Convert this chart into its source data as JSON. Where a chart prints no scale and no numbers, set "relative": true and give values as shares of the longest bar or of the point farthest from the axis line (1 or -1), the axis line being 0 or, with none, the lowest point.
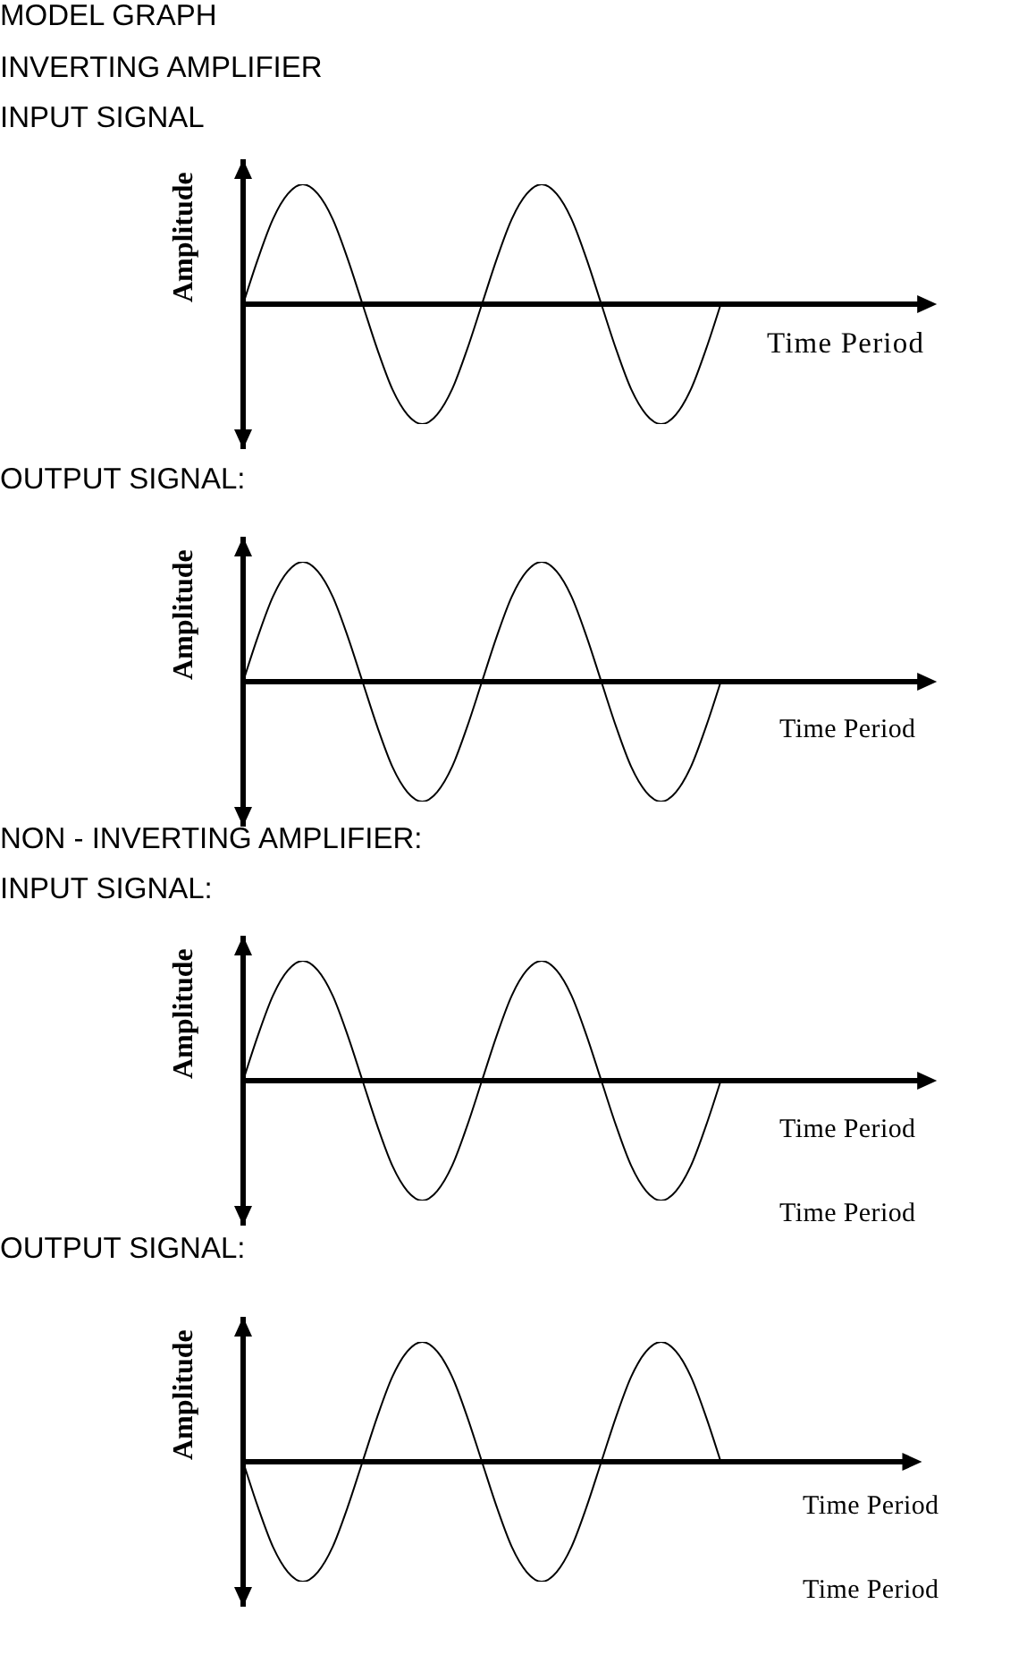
{
  "chart_data": [
    {
      "type": "line",
      "title": "MODEL GRAPH\nINVERTING AMPLIFIER",
      "subtitle": "INPUT SIGNAL",
      "xlabel": "Time Period",
      "ylabel": "Amplitude",
      "relative": true,
      "categories": [
        null,
        null,
        null,
        null,
        null,
        null,
        null,
        null,
        null,
        null,
        null,
        null,
        null,
        null,
        null,
        null,
        null,
        null,
        null,
        null,
        null,
        null,
        null,
        null,
        null,
        null,
        null,
        null,
        null,
        null,
        null,
        null,
        null,
        null,
        null,
        null,
        null,
        null,
        null,
        null,
        null,
        null,
        null,
        null,
        null,
        null,
        null
      ],
      "values": [
        0,
        0.38,
        0.71,
        0.92,
        1,
        0.92,
        0.71,
        0.38,
        0,
        -0.38,
        -0.71,
        -0.92,
        -1,
        -0.92,
        -0.71,
        -0.38,
        0,
        0.38,
        0.71,
        0.92,
        1,
        0.92,
        0.71,
        0.38,
        0,
        -0.38,
        -0.71,
        -0.92,
        -1,
        -0.92,
        -0.71,
        -0.38,
        0,
        null,
        null,
        null,
        null,
        null,
        null,
        null,
        null,
        null,
        null,
        null,
        null,
        null,
        null
      ],
      "color": "#000000"
    },
    {
      "type": "line",
      "title": "OUTPUT SIGNAL:",
      "xlabel": "Time Period",
      "ylabel": "Amplitude",
      "relative": true,
      "categories": [
        null,
        null,
        null,
        null,
        null,
        null,
        null,
        null,
        null,
        null,
        null,
        null,
        null,
        null,
        null,
        null,
        null,
        null,
        null,
        null,
        null,
        null,
        null,
        null,
        null,
        null,
        null,
        null,
        null,
        null,
        null,
        null,
        null,
        null,
        null,
        null,
        null,
        null,
        null,
        null,
        null,
        null,
        null,
        null,
        null,
        null,
        null
      ],
      "values": [
        0,
        0.38,
        0.71,
        0.92,
        1,
        0.92,
        0.71,
        0.38,
        0,
        -0.38,
        -0.71,
        -0.92,
        -1,
        -0.92,
        -0.71,
        -0.38,
        0,
        0.38,
        0.71,
        0.92,
        1,
        0.92,
        0.71,
        0.38,
        0,
        -0.38,
        -0.71,
        -0.92,
        -1,
        -0.92,
        -0.71,
        -0.38,
        0,
        null,
        null,
        null,
        null,
        null,
        null,
        null,
        null,
        null,
        null,
        null,
        null,
        null,
        null
      ],
      "color": "#000000"
    },
    {
      "type": "line",
      "title": "NON - INVERTING AMPLIFIER:",
      "subtitle": "INPUT SIGNAL:",
      "xlabel": "Time Period",
      "ylabel": "Amplitude",
      "relative": true,
      "annotations": [
        "Time Period"
      ],
      "categories": [
        null,
        null,
        null,
        null,
        null,
        null,
        null,
        null,
        null,
        null,
        null,
        null,
        null,
        null,
        null,
        null,
        null,
        null,
        null,
        null,
        null,
        null,
        null,
        null,
        null,
        null,
        null,
        null,
        null,
        null,
        null,
        null,
        null,
        null,
        null,
        null,
        null,
        null,
        null,
        null,
        null,
        null,
        null,
        null,
        null,
        null,
        null
      ],
      "values": [
        0,
        0.38,
        0.71,
        0.92,
        1,
        0.92,
        0.71,
        0.38,
        0,
        -0.38,
        -0.71,
        -0.92,
        -1,
        -0.92,
        -0.71,
        -0.38,
        0,
        0.38,
        0.71,
        0.92,
        1,
        0.92,
        0.71,
        0.38,
        0,
        -0.38,
        -0.71,
        -0.92,
        -1,
        -0.92,
        -0.71,
        -0.38,
        0,
        null,
        null,
        null,
        null,
        null,
        null,
        null,
        null,
        null,
        null,
        null,
        null,
        null,
        null
      ],
      "color": "#000000"
    },
    {
      "type": "line",
      "title": "OUTPUT SIGNAL:",
      "xlabel": "Time Period",
      "ylabel": "Amplitude",
      "relative": true,
      "annotations": [
        "Time Period"
      ],
      "categories": [
        null,
        null,
        null,
        null,
        null,
        null,
        null,
        null,
        null,
        null,
        null,
        null,
        null,
        null,
        null,
        null,
        null,
        null,
        null,
        null,
        null,
        null,
        null,
        null,
        null,
        null,
        null,
        null,
        null,
        null,
        null,
        null,
        null,
        null,
        null,
        null,
        null,
        null,
        null,
        null,
        null,
        null,
        null,
        null,
        null,
        null
      ],
      "values": [
        0,
        -0.38,
        -0.71,
        -0.92,
        -1,
        -0.92,
        -0.71,
        -0.38,
        0,
        0.38,
        0.71,
        0.92,
        1,
        0.92,
        0.71,
        0.38,
        0,
        -0.38,
        -0.71,
        -0.92,
        -1,
        -0.92,
        -0.71,
        -0.38,
        0,
        0.38,
        0.71,
        0.92,
        1,
        0.92,
        0.71,
        0.38,
        0,
        null,
        null,
        null,
        null,
        null,
        null,
        null,
        null,
        null,
        null,
        null,
        null,
        null
      ],
      "color": "#000000"
    }
  ]
}
